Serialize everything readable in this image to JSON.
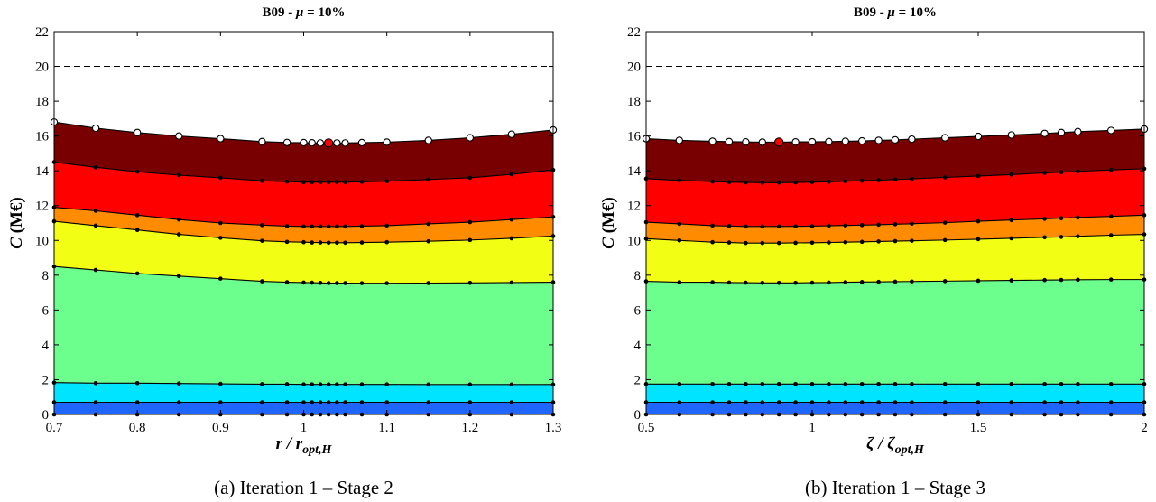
{
  "chart_data": [
    {
      "type": "area",
      "title_prefix": "B09 - ",
      "title_symbol": "μ",
      "title_suffix": " = 10%",
      "xlabel_main": "r / r",
      "xlabel_sub": "opt,H",
      "ylabel_main": "C",
      "ylabel_unit": " (M€)",
      "caption": "(a) Iteration 1 – Stage 2",
      "xlim": [
        0.7,
        1.3
      ],
      "ylim": [
        0,
        22
      ],
      "xticks": [
        "0.7",
        "0.8",
        "0.9",
        "1",
        "1.1",
        "1.2",
        "1.3"
      ],
      "yticks": [
        "0",
        "2",
        "4",
        "6",
        "8",
        "10",
        "12",
        "14",
        "16",
        "18",
        "20",
        "22"
      ],
      "reference_line": 20,
      "optimum": {
        "x": 1.03,
        "y": 15.6
      },
      "x": [
        0.7,
        0.75,
        0.8,
        0.85,
        0.9,
        0.95,
        0.98,
        1.0,
        1.01,
        1.02,
        1.03,
        1.04,
        1.05,
        1.07,
        1.1,
        1.15,
        1.2,
        1.25,
        1.3
      ],
      "series": [
        {
          "color": "#1f66ff",
          "values": [
            0.7,
            0.7,
            0.7,
            0.7,
            0.7,
            0.7,
            0.7,
            0.7,
            0.7,
            0.7,
            0.7,
            0.7,
            0.7,
            0.7,
            0.7,
            0.7,
            0.7,
            0.7,
            0.7
          ]
        },
        {
          "color": "#00e4ff",
          "values": [
            1.83,
            1.8,
            1.8,
            1.78,
            1.76,
            1.74,
            1.74,
            1.73,
            1.73,
            1.73,
            1.73,
            1.73,
            1.73,
            1.73,
            1.73,
            1.72,
            1.72,
            1.72,
            1.72
          ]
        },
        {
          "color": "#6cff8e",
          "values": [
            8.5,
            8.3,
            8.1,
            7.95,
            7.8,
            7.65,
            7.6,
            7.58,
            7.57,
            7.56,
            7.55,
            7.55,
            7.55,
            7.54,
            7.54,
            7.55,
            7.56,
            7.58,
            7.6
          ]
        },
        {
          "color": "#f2ff14",
          "values": [
            11.1,
            10.85,
            10.6,
            10.35,
            10.15,
            9.98,
            9.92,
            9.9,
            9.88,
            9.88,
            9.87,
            9.87,
            9.87,
            9.88,
            9.9,
            9.95,
            10.02,
            10.12,
            10.25
          ]
        },
        {
          "color": "#ff8c00",
          "values": [
            11.9,
            11.7,
            11.45,
            11.2,
            11.0,
            10.88,
            10.82,
            10.8,
            10.8,
            10.8,
            10.8,
            10.8,
            10.8,
            10.82,
            10.85,
            10.95,
            11.05,
            11.2,
            11.35
          ]
        },
        {
          "color": "#ff0000",
          "values": [
            14.5,
            14.2,
            13.95,
            13.75,
            13.6,
            13.42,
            13.38,
            13.35,
            13.35,
            13.35,
            13.35,
            13.35,
            13.35,
            13.37,
            13.4,
            13.5,
            13.6,
            13.8,
            14.05
          ]
        },
        {
          "color": "#780000",
          "values": [
            16.8,
            16.45,
            16.2,
            16.0,
            15.85,
            15.68,
            15.63,
            15.62,
            15.61,
            15.6,
            15.6,
            15.6,
            15.6,
            15.62,
            15.65,
            15.75,
            15.9,
            16.1,
            16.35
          ]
        }
      ]
    },
    {
      "type": "area",
      "title_prefix": "B09 - ",
      "title_symbol": "μ",
      "title_suffix": " = 10%",
      "xlabel_main": "ζ / ζ",
      "xlabel_sub": "opt,H",
      "ylabel_main": "C",
      "ylabel_unit": " (M€)",
      "caption": "(b) Iteration 1 – Stage 3",
      "xlim": [
        0.5,
        2
      ],
      "ylim": [
        0,
        22
      ],
      "xticks": [
        "0.5",
        "1",
        "1.5",
        "2"
      ],
      "yticks": [
        "0",
        "2",
        "4",
        "6",
        "8",
        "10",
        "12",
        "14",
        "16",
        "18",
        "20",
        "22"
      ],
      "reference_line": 20,
      "optimum": {
        "x": 0.9,
        "y": 15.65
      },
      "x": [
        0.5,
        0.6,
        0.7,
        0.75,
        0.8,
        0.85,
        0.9,
        0.95,
        1.0,
        1.05,
        1.1,
        1.15,
        1.2,
        1.25,
        1.3,
        1.4,
        1.5,
        1.6,
        1.7,
        1.75,
        1.8,
        1.9,
        2.0
      ],
      "series": [
        {
          "color": "#1f66ff",
          "values": [
            0.7,
            0.7,
            0.7,
            0.7,
            0.7,
            0.7,
            0.7,
            0.7,
            0.7,
            0.7,
            0.7,
            0.7,
            0.7,
            0.7,
            0.7,
            0.7,
            0.7,
            0.7,
            0.7,
            0.7,
            0.7,
            0.7,
            0.7
          ]
        },
        {
          "color": "#00e4ff",
          "values": [
            1.75,
            1.75,
            1.75,
            1.75,
            1.75,
            1.75,
            1.75,
            1.75,
            1.75,
            1.75,
            1.75,
            1.75,
            1.75,
            1.75,
            1.75,
            1.75,
            1.75,
            1.75,
            1.75,
            1.75,
            1.75,
            1.75,
            1.75
          ]
        },
        {
          "color": "#6cff8e",
          "values": [
            7.65,
            7.6,
            7.6,
            7.58,
            7.57,
            7.56,
            7.56,
            7.56,
            7.57,
            7.58,
            7.6,
            7.61,
            7.62,
            7.63,
            7.64,
            7.66,
            7.68,
            7.7,
            7.72,
            7.73,
            7.74,
            7.75,
            7.75
          ]
        },
        {
          "color": "#f2ff14",
          "values": [
            10.1,
            10.0,
            9.9,
            9.88,
            9.85,
            9.85,
            9.85,
            9.86,
            9.87,
            9.88,
            9.9,
            9.92,
            9.94,
            9.96,
            9.98,
            10.02,
            10.07,
            10.12,
            10.18,
            10.2,
            10.24,
            10.3,
            10.35
          ]
        },
        {
          "color": "#ff8c00",
          "values": [
            11.05,
            10.95,
            10.85,
            10.83,
            10.8,
            10.8,
            10.8,
            10.81,
            10.82,
            10.84,
            10.86,
            10.88,
            10.9,
            10.93,
            10.96,
            11.02,
            11.1,
            11.17,
            11.24,
            11.28,
            11.32,
            11.38,
            11.45
          ]
        },
        {
          "color": "#ff0000",
          "values": [
            13.55,
            13.45,
            13.38,
            13.35,
            13.33,
            13.32,
            13.32,
            13.33,
            13.35,
            13.37,
            13.4,
            13.43,
            13.46,
            13.5,
            13.54,
            13.62,
            13.7,
            13.78,
            13.88,
            13.92,
            13.97,
            14.05,
            14.12
          ]
        },
        {
          "color": "#780000",
          "values": [
            15.85,
            15.75,
            15.7,
            15.68,
            15.66,
            15.65,
            15.65,
            15.66,
            15.67,
            15.68,
            15.7,
            15.72,
            15.75,
            15.78,
            15.82,
            15.9,
            15.98,
            16.06,
            16.15,
            16.2,
            16.25,
            16.32,
            16.4
          ]
        }
      ]
    }
  ]
}
